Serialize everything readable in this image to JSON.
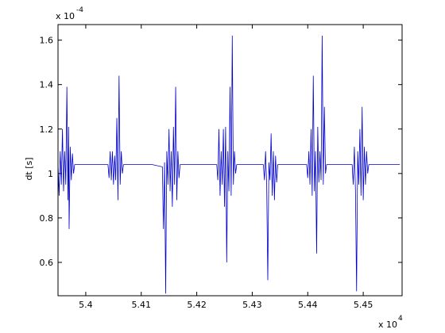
{
  "chart_data": {
    "type": "line",
    "title": "",
    "xlabel": "",
    "ylabel": "dt [s]",
    "x_multiplier": {
      "base": "x 10",
      "exponent": "4"
    },
    "y_multiplier": {
      "base": "x 10",
      "exponent": "-4"
    },
    "xlim": [
      5.395,
      5.457
    ],
    "ylim": [
      0.45,
      1.67
    ],
    "x_ticks": [
      {
        "value": 5.4,
        "label": "5.4"
      },
      {
        "value": 5.41,
        "label": "5.41"
      },
      {
        "value": 5.42,
        "label": "5.42"
      },
      {
        "value": 5.43,
        "label": "5.43"
      },
      {
        "value": 5.44,
        "label": "5.44"
      },
      {
        "value": 5.45,
        "label": "5.45"
      }
    ],
    "y_ticks": [
      {
        "value": 0.6,
        "label": "0.6"
      },
      {
        "value": 0.8,
        "label": "0.8"
      },
      {
        "value": 1.0,
        "label": "1"
      },
      {
        "value": 1.2,
        "label": "1.2"
      },
      {
        "value": 1.4,
        "label": "1.4"
      },
      {
        "value": 1.6,
        "label": "1.6"
      }
    ],
    "grid": false,
    "baseline": 1.04,
    "series": [
      {
        "color": "#0000cc",
        "points": [
          [
            5.395,
            1.04
          ],
          [
            5.3952,
            0.9
          ],
          [
            5.3954,
            1.1
          ],
          [
            5.3956,
            0.95
          ],
          [
            5.3958,
            1.2
          ],
          [
            5.396,
            0.92
          ],
          [
            5.3962,
            1.1
          ],
          [
            5.3964,
            0.95
          ],
          [
            5.3966,
            1.39
          ],
          [
            5.3968,
            0.88
          ],
          [
            5.3969,
            1.21
          ],
          [
            5.397,
            0.75
          ],
          [
            5.3972,
            1.12
          ],
          [
            5.3974,
            0.97
          ],
          [
            5.3976,
            1.09
          ],
          [
            5.3978,
            1.0
          ],
          [
            5.398,
            1.04
          ],
          [
            5.399,
            1.04
          ],
          [
            5.4,
            1.04
          ],
          [
            5.401,
            1.04
          ],
          [
            5.402,
            1.04
          ],
          [
            5.403,
            1.04
          ],
          [
            5.404,
            1.04
          ],
          [
            5.4042,
            0.98
          ],
          [
            5.4044,
            1.1
          ],
          [
            5.4046,
            0.97
          ],
          [
            5.4048,
            1.1
          ],
          [
            5.405,
            0.95
          ],
          [
            5.4052,
            1.08
          ],
          [
            5.4054,
            0.97
          ],
          [
            5.4056,
            1.25
          ],
          [
            5.4058,
            0.88
          ],
          [
            5.406,
            1.44
          ],
          [
            5.4062,
            0.95
          ],
          [
            5.4064,
            1.1
          ],
          [
            5.4066,
            1.0
          ],
          [
            5.4068,
            1.04
          ],
          [
            5.408,
            1.04
          ],
          [
            5.41,
            1.04
          ],
          [
            5.412,
            1.04
          ],
          [
            5.4138,
            1.03
          ],
          [
            5.414,
            0.75
          ],
          [
            5.4142,
            1.05
          ],
          [
            5.4144,
            0.46
          ],
          [
            5.4146,
            1.1
          ],
          [
            5.4148,
            0.95
          ],
          [
            5.415,
            1.2
          ],
          [
            5.4152,
            0.92
          ],
          [
            5.4154,
            1.1
          ],
          [
            5.4156,
            0.85
          ],
          [
            5.4158,
            1.21
          ],
          [
            5.416,
            0.95
          ],
          [
            5.4162,
            1.39
          ],
          [
            5.4164,
            0.88
          ],
          [
            5.4166,
            1.1
          ],
          [
            5.4168,
            0.98
          ],
          [
            5.417,
            1.04
          ],
          [
            5.419,
            1.04
          ],
          [
            5.421,
            1.04
          ],
          [
            5.423,
            1.04
          ],
          [
            5.4236,
            1.04
          ],
          [
            5.4238,
            0.97
          ],
          [
            5.424,
            1.2
          ],
          [
            5.4242,
            0.9
          ],
          [
            5.4244,
            1.1
          ],
          [
            5.4246,
            0.95
          ],
          [
            5.4248,
            1.2
          ],
          [
            5.425,
            0.85
          ],
          [
            5.4252,
            1.21
          ],
          [
            5.4254,
            0.6
          ],
          [
            5.4256,
            1.1
          ],
          [
            5.4258,
            0.92
          ],
          [
            5.426,
            1.39
          ],
          [
            5.4262,
            0.9
          ],
          [
            5.4264,
            1.62
          ],
          [
            5.4266,
            0.95
          ],
          [
            5.4268,
            1.1
          ],
          [
            5.427,
            1.0
          ],
          [
            5.4272,
            1.04
          ],
          [
            5.43,
            1.04
          ],
          [
            5.432,
            1.04
          ],
          [
            5.4322,
            0.97
          ],
          [
            5.4324,
            1.1
          ],
          [
            5.4326,
            0.95
          ],
          [
            5.4328,
            0.52
          ],
          [
            5.433,
            1.05
          ],
          [
            5.4332,
            0.97
          ],
          [
            5.4334,
            1.18
          ],
          [
            5.4336,
            0.9
          ],
          [
            5.4338,
            1.1
          ],
          [
            5.434,
            0.88
          ],
          [
            5.4342,
            1.08
          ],
          [
            5.4344,
            0.96
          ],
          [
            5.4346,
            1.04
          ],
          [
            5.436,
            1.04
          ],
          [
            5.438,
            1.04
          ],
          [
            5.4398,
            1.04
          ],
          [
            5.44,
            0.98
          ],
          [
            5.4402,
            1.1
          ],
          [
            5.4404,
            0.95
          ],
          [
            5.4406,
            1.2
          ],
          [
            5.4408,
            0.9
          ],
          [
            5.441,
            1.44
          ],
          [
            5.4412,
            0.92
          ],
          [
            5.4414,
            1.1
          ],
          [
            5.4416,
            0.64
          ],
          [
            5.4418,
            1.21
          ],
          [
            5.442,
            0.96
          ],
          [
            5.4422,
            1.1
          ],
          [
            5.4424,
            0.97
          ],
          [
            5.4426,
            1.62
          ],
          [
            5.4428,
            0.95
          ],
          [
            5.443,
            1.3
          ],
          [
            5.4432,
            1.0
          ],
          [
            5.4434,
            1.04
          ],
          [
            5.445,
            1.04
          ],
          [
            5.447,
            1.04
          ],
          [
            5.448,
            1.04
          ],
          [
            5.4482,
            0.95
          ],
          [
            5.4484,
            1.12
          ],
          [
            5.4486,
            0.92
          ],
          [
            5.4488,
            0.47
          ],
          [
            5.449,
            1.1
          ],
          [
            5.4492,
            0.95
          ],
          [
            5.4494,
            1.2
          ],
          [
            5.4496,
            0.9
          ],
          [
            5.4498,
            1.3
          ],
          [
            5.45,
            0.88
          ],
          [
            5.4502,
            1.12
          ],
          [
            5.4504,
            0.95
          ],
          [
            5.4506,
            1.1
          ],
          [
            5.4508,
            1.0
          ],
          [
            5.451,
            1.04
          ],
          [
            5.453,
            1.04
          ],
          [
            5.455,
            1.04
          ],
          [
            5.4566,
            1.04
          ]
        ]
      }
    ]
  }
}
